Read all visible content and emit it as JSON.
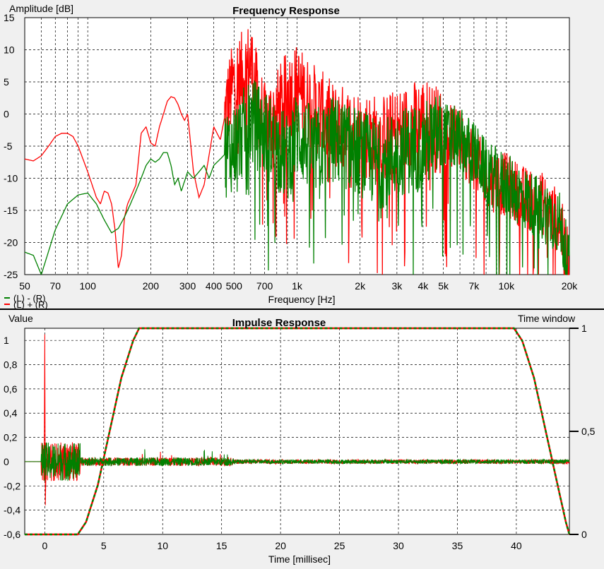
{
  "chart_data": [
    {
      "type": "line",
      "title": "Frequency Response",
      "xlabel": "Frequency [Hz]",
      "ylabel": "Amplitude [dB]",
      "x_scale": "log",
      "xlim": [
        50,
        20000
      ],
      "ylim": [
        -25,
        15
      ],
      "x_ticks": [
        {
          "value": 50,
          "label": "50"
        },
        {
          "value": 70,
          "label": "70"
        },
        {
          "value": 100,
          "label": "100"
        },
        {
          "value": 200,
          "label": "200"
        },
        {
          "value": 300,
          "label": "300"
        },
        {
          "value": 400,
          "label": "400"
        },
        {
          "value": 500,
          "label": "500"
        },
        {
          "value": 700,
          "label": "700"
        },
        {
          "value": 1000,
          "label": "1k"
        },
        {
          "value": 2000,
          "label": "2k"
        },
        {
          "value": 3000,
          "label": "3k"
        },
        {
          "value": 4000,
          "label": "4k"
        },
        {
          "value": 5000,
          "label": "5k"
        },
        {
          "value": 7000,
          "label": "7k"
        },
        {
          "value": 10000,
          "label": "10k"
        },
        {
          "value": 20000,
          "label": "20k"
        }
      ],
      "y_ticks": [
        15,
        10,
        5,
        0,
        -5,
        -10,
        -15,
        -20,
        -25
      ],
      "grid": true,
      "legend": "bottom-left",
      "series": [
        {
          "name": "(L) - (R)",
          "color": "#008000",
          "points": [
            [
              50,
              -21.5
            ],
            [
              55,
              -22
            ],
            [
              60,
              -25
            ],
            [
              70,
              -18
            ],
            [
              80,
              -14
            ],
            [
              90,
              -12.6
            ],
            [
              100,
              -12.3
            ],
            [
              110,
              -14
            ],
            [
              120,
              -16.5
            ],
            [
              130,
              -18.5
            ],
            [
              140,
              -17.8
            ],
            [
              150,
              -16
            ],
            [
              160,
              -14
            ],
            [
              170,
              -12
            ],
            [
              180,
              -10
            ],
            [
              190,
              -8
            ],
            [
              200,
              -7
            ],
            [
              210,
              -7.5
            ],
            [
              220,
              -7
            ],
            [
              230,
              -6
            ],
            [
              240,
              -6
            ],
            [
              250,
              -8
            ],
            [
              260,
              -11
            ],
            [
              270,
              -10
            ],
            [
              280,
              -12
            ],
            [
              300,
              -9
            ],
            [
              320,
              -10
            ],
            [
              340,
              -9
            ],
            [
              360,
              -8
            ],
            [
              380,
              -10
            ],
            [
              400,
              -8
            ],
            [
              430,
              -7
            ],
            [
              460,
              -6
            ],
            [
              500,
              -5
            ],
            [
              550,
              -3
            ],
            [
              600,
              -1
            ],
            [
              700,
              -3
            ],
            [
              800,
              -5
            ],
            [
              900,
              -7
            ],
            [
              1000,
              -3
            ],
            [
              1200,
              -6
            ],
            [
              1500,
              -4
            ],
            [
              2000,
              -6
            ],
            [
              2500,
              -8
            ],
            [
              3000,
              -6
            ],
            [
              4000,
              -5
            ],
            [
              5000,
              -3
            ],
            [
              6000,
              -4
            ],
            [
              7000,
              -6
            ],
            [
              8000,
              -9
            ],
            [
              10000,
              -11
            ],
            [
              12000,
              -13
            ],
            [
              15000,
              -15
            ],
            [
              18000,
              -17
            ],
            [
              20000,
              -24
            ]
          ]
        },
        {
          "name": "(L) + (R)",
          "color": "#ff0000",
          "points": [
            [
              50,
              -7
            ],
            [
              55,
              -7.3
            ],
            [
              60,
              -6.5
            ],
            [
              65,
              -5
            ],
            [
              70,
              -3.5
            ],
            [
              75,
              -3
            ],
            [
              80,
              -3
            ],
            [
              85,
              -3.5
            ],
            [
              90,
              -5
            ],
            [
              100,
              -9
            ],
            [
              110,
              -13
            ],
            [
              115,
              -14
            ],
            [
              120,
              -12
            ],
            [
              125,
              -12.3
            ],
            [
              130,
              -14
            ],
            [
              135,
              -18
            ],
            [
              140,
              -24
            ],
            [
              145,
              -22
            ],
            [
              150,
              -16
            ],
            [
              155,
              -14
            ],
            [
              160,
              -13
            ],
            [
              170,
              -11
            ],
            [
              180,
              -3
            ],
            [
              190,
              -2
            ],
            [
              200,
              -4.5
            ],
            [
              210,
              -5
            ],
            [
              220,
              -2
            ],
            [
              230,
              0
            ],
            [
              240,
              2
            ],
            [
              250,
              2.7
            ],
            [
              260,
              2.5
            ],
            [
              270,
              1.5
            ],
            [
              280,
              0
            ],
            [
              290,
              -1
            ],
            [
              300,
              0
            ],
            [
              320,
              -9
            ],
            [
              340,
              -13
            ],
            [
              360,
              -11
            ],
            [
              400,
              -2
            ],
            [
              430,
              -4
            ],
            [
              460,
              1
            ],
            [
              500,
              5
            ],
            [
              550,
              6
            ],
            [
              600,
              8
            ],
            [
              650,
              2
            ],
            [
              700,
              -2
            ],
            [
              800,
              0
            ],
            [
              900,
              3
            ],
            [
              1000,
              4
            ],
            [
              1200,
              1
            ],
            [
              1500,
              -2
            ],
            [
              2000,
              -3
            ],
            [
              2500,
              -4
            ],
            [
              3000,
              -3
            ],
            [
              4000,
              -1
            ],
            [
              5000,
              -3
            ],
            [
              6000,
              -4
            ],
            [
              7000,
              -7
            ],
            [
              8000,
              -10
            ],
            [
              10000,
              -11
            ],
            [
              12000,
              -13
            ],
            [
              15000,
              -14
            ],
            [
              18000,
              -17
            ],
            [
              20000,
              -24
            ]
          ]
        }
      ]
    },
    {
      "type": "line",
      "title": "Impulse Response",
      "xlabel": "Time [millisec]",
      "ylabel": "Value",
      "ylabel_right": "Time window",
      "xlim": [
        -1.7,
        44.5
      ],
      "ylim": [
        -0.6,
        1.1
      ],
      "y2lim": [
        0,
        1
      ],
      "x_ticks": [
        0,
        5,
        10,
        15,
        20,
        25,
        30,
        35,
        40
      ],
      "y_ticks": [
        {
          "value": 1,
          "label": "1"
        },
        {
          "value": 0.8,
          "label": "0,8"
        },
        {
          "value": 0.6,
          "label": "0,6"
        },
        {
          "value": 0.4,
          "label": "0,4"
        },
        {
          "value": 0.2,
          "label": "0,2"
        },
        {
          "value": 0,
          "label": "0"
        },
        {
          "value": -0.2,
          "label": "-0,2"
        },
        {
          "value": -0.4,
          "label": "-0,4"
        },
        {
          "value": -0.6,
          "label": "-0,6"
        }
      ],
      "y2_ticks": [
        {
          "value": 1,
          "label": "1"
        },
        {
          "value": 0.5,
          "label": "0,5"
        },
        {
          "value": 0,
          "label": "0"
        }
      ],
      "grid": true,
      "series": [
        {
          "name": "(L) + (R)",
          "color": "#ff0000",
          "points": [
            [
              -1.7,
              0
            ],
            [
              -0.5,
              0
            ],
            [
              -0.2,
              0.03
            ],
            [
              0,
              1.05
            ],
            [
              0.05,
              -0.36
            ],
            [
              0.2,
              0.12
            ],
            [
              0.3,
              0.28
            ],
            [
              0.5,
              -0.1
            ],
            [
              0.8,
              0.2
            ],
            [
              1,
              -0.06
            ],
            [
              1.5,
              0.14
            ],
            [
              2,
              -0.05
            ],
            [
              2.5,
              0.08
            ],
            [
              3,
              -0.04
            ],
            [
              4,
              0.03
            ],
            [
              5,
              -0.02
            ],
            [
              6,
              0.02
            ],
            [
              7,
              0
            ],
            [
              8,
              0
            ],
            [
              8.5,
              0.06
            ],
            [
              9,
              -0.03
            ],
            [
              10,
              0.02
            ],
            [
              12,
              -0.02
            ],
            [
              14,
              0.06
            ],
            [
              15,
              -0.03
            ],
            [
              20,
              0.01
            ],
            [
              30,
              0
            ],
            [
              40,
              0
            ],
            [
              44.5,
              0
            ]
          ]
        },
        {
          "name": "(L) - (R)",
          "color": "#008000",
          "points": [
            [
              -1.7,
              0
            ],
            [
              -0.3,
              0
            ],
            [
              0,
              0.02
            ],
            [
              0.3,
              0.16
            ],
            [
              0.5,
              -0.14
            ],
            [
              0.8,
              0.12
            ],
            [
              1,
              -0.08
            ],
            [
              1.5,
              0.1
            ],
            [
              2,
              -0.06
            ],
            [
              2.5,
              0.06
            ],
            [
              3,
              -0.04
            ],
            [
              4,
              0.02
            ],
            [
              5,
              -0.02
            ],
            [
              6,
              0.02
            ],
            [
              8,
              0
            ],
            [
              8.5,
              0.06
            ],
            [
              9,
              -0.02
            ],
            [
              10,
              0.02
            ],
            [
              12,
              -0.02
            ],
            [
              14,
              0.06
            ],
            [
              15,
              -0.02
            ],
            [
              20,
              0.01
            ],
            [
              30,
              0
            ],
            [
              40,
              0
            ],
            [
              44.5,
              0
            ]
          ]
        },
        {
          "name": "Time window",
          "axis": "right",
          "color": "#008000",
          "dashed": true,
          "points": [
            [
              -1.7,
              0
            ],
            [
              2.8,
              0
            ],
            [
              3.5,
              0.06
            ],
            [
              4.5,
              0.24
            ],
            [
              5.5,
              0.5
            ],
            [
              6.5,
              0.76
            ],
            [
              7.5,
              0.94
            ],
            [
              8,
              1
            ],
            [
              39.8,
              1
            ],
            [
              40.5,
              0.94
            ],
            [
              41.5,
              0.76
            ],
            [
              42.5,
              0.5
            ],
            [
              43.5,
              0.24
            ],
            [
              44.2,
              0.06
            ],
            [
              44.5,
              0
            ]
          ]
        }
      ]
    }
  ]
}
